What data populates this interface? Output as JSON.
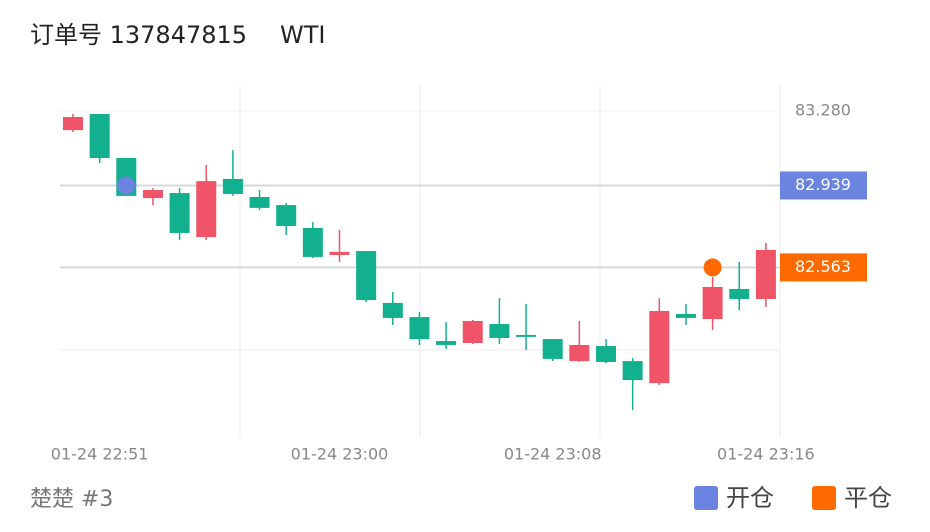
{
  "title": "订单号 137847815",
  "symbol": "WTI",
  "footer": "楚楚 #3",
  "chart_data": {
    "type": "candlestick",
    "categories": [
      null,
      "01-24 22:51",
      null,
      null,
      null,
      null,
      null,
      null,
      null,
      null,
      "01-24 23:00",
      null,
      null,
      null,
      null,
      null,
      null,
      null,
      "01-24 23:08",
      null,
      null,
      null,
      null,
      null,
      null,
      null,
      "01-24 23:16"
    ],
    "open": [
      83.193,
      83.267,
      83.065,
      82.881,
      82.904,
      82.702,
      82.969,
      82.886,
      82.849,
      82.744,
      82.62,
      82.638,
      82.4,
      82.335,
      82.225,
      82.216,
      82.303,
      82.253,
      82.234,
      82.133,
      82.202,
      82.133,
      82.032,
      82.349,
      82.326,
      82.464,
      82.418
    ],
    "high": [
      83.267,
      83.267,
      83.065,
      82.927,
      82.927,
      83.033,
      83.102,
      82.918,
      82.858,
      82.771,
      82.735,
      82.638,
      82.45,
      82.358,
      82.312,
      82.322,
      82.422,
      82.395,
      82.234,
      82.317,
      82.234,
      82.147,
      82.422,
      82.395,
      82.519,
      82.588,
      82.675
    ],
    "low": [
      83.184,
      83.042,
      82.891,
      82.849,
      82.689,
      82.689,
      82.891,
      82.826,
      82.712,
      82.606,
      82.588,
      82.404,
      82.299,
      82.207,
      82.188,
      82.211,
      82.211,
      82.184,
      82.133,
      82.129,
      82.124,
      81.908,
      82.023,
      82.299,
      82.276,
      82.367,
      82.381
    ],
    "close": [
      83.253,
      83.065,
      82.891,
      82.918,
      82.721,
      82.959,
      82.9,
      82.836,
      82.753,
      82.611,
      82.634,
      82.413,
      82.331,
      82.234,
      82.207,
      82.317,
      82.239,
      82.244,
      82.143,
      82.207,
      82.129,
      82.046,
      82.363,
      82.331,
      82.473,
      82.418,
      82.643
    ],
    "up_color": "#ef5468",
    "down_color": "#12b08f",
    "ylim": [
      81.78,
      83.4
    ],
    "yticks": [
      {
        "value": 83.28,
        "label": "83.280"
      }
    ],
    "markers": [
      {
        "name": "开仓",
        "color": "#6b84e0",
        "x": 2,
        "value": 82.939,
        "value_label": "82.939"
      },
      {
        "name": "平仓",
        "color": "#ff6a00",
        "x": 24,
        "value": 82.563,
        "value_label": "82.563"
      }
    ]
  }
}
